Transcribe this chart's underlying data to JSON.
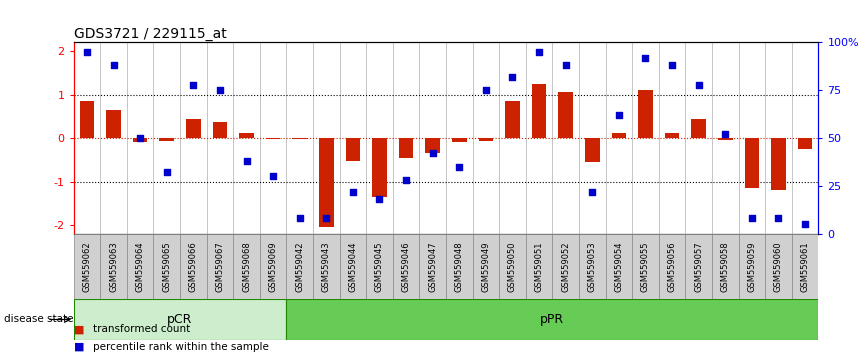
{
  "title": "GDS3721 / 229115_at",
  "samples": [
    "GSM559062",
    "GSM559063",
    "GSM559064",
    "GSM559065",
    "GSM559066",
    "GSM559067",
    "GSM559068",
    "GSM559069",
    "GSM559042",
    "GSM559043",
    "GSM559044",
    "GSM559045",
    "GSM559046",
    "GSM559047",
    "GSM559048",
    "GSM559049",
    "GSM559050",
    "GSM559051",
    "GSM559052",
    "GSM559053",
    "GSM559054",
    "GSM559055",
    "GSM559056",
    "GSM559057",
    "GSM559058",
    "GSM559059",
    "GSM559060",
    "GSM559061"
  ],
  "bar_values": [
    0.85,
    0.65,
    -0.08,
    -0.07,
    0.45,
    0.38,
    0.12,
    -0.02,
    -0.02,
    -2.05,
    -0.52,
    -1.35,
    -0.47,
    -0.35,
    -0.08,
    -0.07,
    0.85,
    1.25,
    1.05,
    -0.55,
    0.12,
    1.1,
    0.12,
    0.45,
    -0.05,
    -1.15,
    -1.2,
    -0.25
  ],
  "dot_percentiles": [
    95,
    88,
    50,
    32,
    78,
    75,
    38,
    30,
    8,
    8,
    22,
    18,
    28,
    42,
    35,
    75,
    82,
    95,
    88,
    22,
    62,
    92,
    88,
    78,
    52,
    8,
    8,
    5
  ],
  "pCR_count": 8,
  "pPR_count": 20,
  "ylim_left": [
    -2.2,
    2.2
  ],
  "yticks_left": [
    -2,
    -1,
    0,
    1,
    2
  ],
  "yticks_right_pct": [
    0,
    25,
    50,
    75,
    100
  ],
  "bar_color": "#CC2200",
  "dot_color": "#0000CC",
  "zero_line_color": "#CC2200",
  "ref_line_color": "black",
  "group_pCR_color": "#CCEECC",
  "group_pPR_color": "#66CC55",
  "legend_labels": [
    "transformed count",
    "percentile rank within the sample"
  ],
  "disease_state_text": "disease state"
}
